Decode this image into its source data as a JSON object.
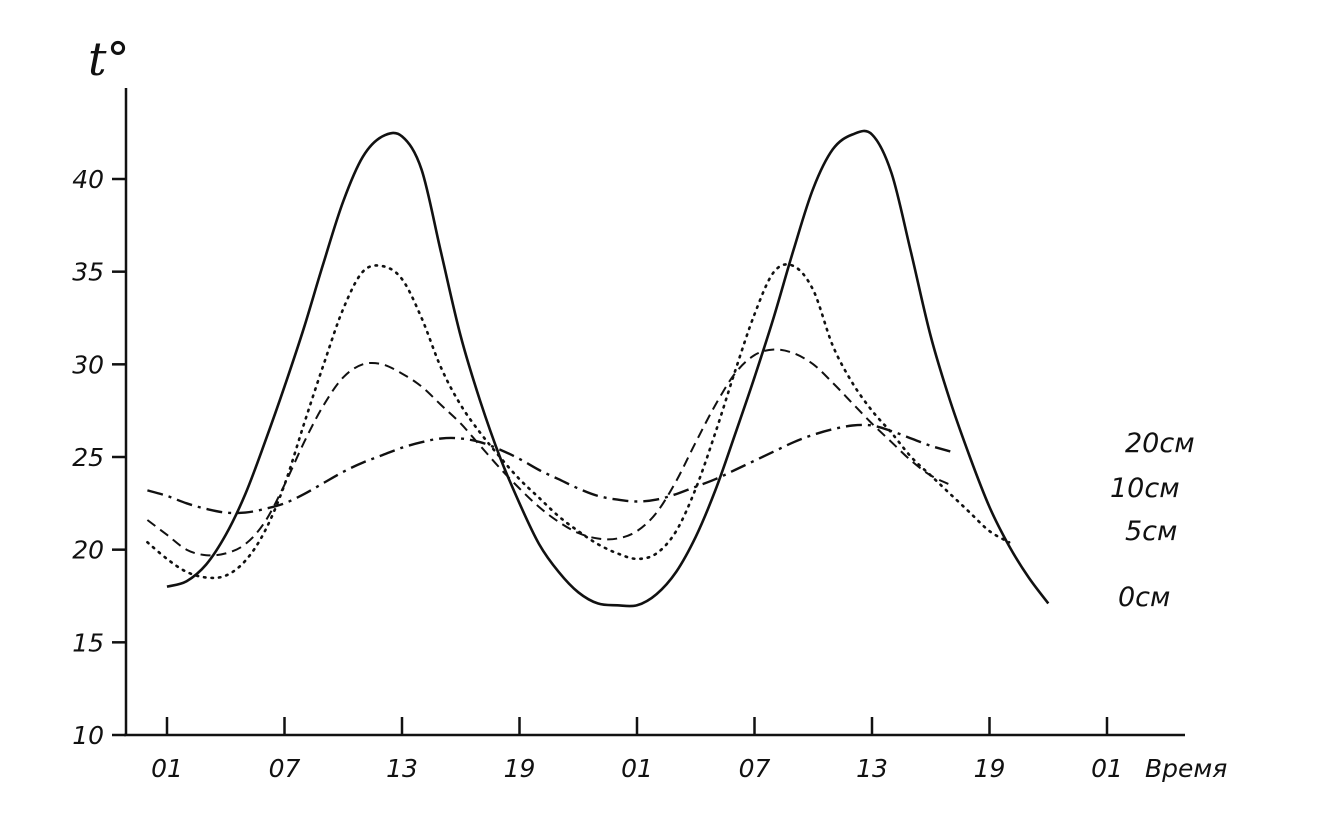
{
  "chart_data": {
    "type": "line",
    "ylabel": "t°",
    "xlabel": "Время",
    "ylim": [
      10,
      44
    ],
    "xlim": [
      0,
      48
    ],
    "y_ticks": [
      10,
      15,
      20,
      25,
      30,
      35,
      40
    ],
    "x_ticks": [
      {
        "label": "01",
        "x": 0
      },
      {
        "label": "07",
        "x": 6
      },
      {
        "label": "13",
        "x": 12
      },
      {
        "label": "19",
        "x": 18
      },
      {
        "label": "01",
        "x": 24
      },
      {
        "label": "07",
        "x": 30
      },
      {
        "label": "13",
        "x": 36
      },
      {
        "label": "19",
        "x": 42
      },
      {
        "label": "01",
        "x": 48
      }
    ],
    "grid": false,
    "series": [
      {
        "name": "0см",
        "style": "solid",
        "points": [
          [
            0,
            18.0
          ],
          [
            1,
            18.3
          ],
          [
            2,
            19.2
          ],
          [
            3,
            20.8
          ],
          [
            4,
            23.0
          ],
          [
            5,
            25.8
          ],
          [
            6,
            28.8
          ],
          [
            7,
            32.0
          ],
          [
            8,
            35.5
          ],
          [
            9,
            38.8
          ],
          [
            10,
            41.2
          ],
          [
            11,
            42.3
          ],
          [
            12,
            42.3
          ],
          [
            13,
            40.5
          ],
          [
            14,
            36.0
          ],
          [
            15,
            31.5
          ],
          [
            16,
            28.0
          ],
          [
            17,
            25.0
          ],
          [
            18,
            22.5
          ],
          [
            19,
            20.3
          ],
          [
            20,
            18.8
          ],
          [
            21,
            17.7
          ],
          [
            22,
            17.1
          ],
          [
            23,
            17.0
          ],
          [
            24,
            17.0
          ],
          [
            25,
            17.6
          ],
          [
            26,
            18.8
          ],
          [
            27,
            20.7
          ],
          [
            28,
            23.2
          ],
          [
            29,
            26.2
          ],
          [
            30,
            29.3
          ],
          [
            31,
            32.6
          ],
          [
            32,
            36.2
          ],
          [
            33,
            39.5
          ],
          [
            34,
            41.6
          ],
          [
            35,
            42.4
          ],
          [
            36,
            42.4
          ],
          [
            37,
            40.3
          ],
          [
            38,
            36.0
          ],
          [
            39,
            31.5
          ],
          [
            40,
            28.0
          ],
          [
            41,
            25.0
          ],
          [
            42,
            22.3
          ],
          [
            43,
            20.2
          ],
          [
            44,
            18.5
          ],
          [
            45,
            17.1
          ]
        ]
      },
      {
        "name": "5см",
        "style": "dotted",
        "points": [
          [
            -1,
            20.4
          ],
          [
            0,
            19.5
          ],
          [
            1,
            18.8
          ],
          [
            2,
            18.5
          ],
          [
            3,
            18.6
          ],
          [
            4,
            19.4
          ],
          [
            5,
            21.0
          ],
          [
            6,
            23.5
          ],
          [
            7,
            26.8
          ],
          [
            8,
            30.0
          ],
          [
            9,
            33.0
          ],
          [
            10,
            35.0
          ],
          [
            11,
            35.3
          ],
          [
            12,
            34.6
          ],
          [
            13,
            32.5
          ],
          [
            14,
            29.8
          ],
          [
            15,
            27.8
          ],
          [
            16,
            26.3
          ],
          [
            17,
            25.0
          ],
          [
            18,
            23.8
          ],
          [
            19,
            22.8
          ],
          [
            20,
            21.8
          ],
          [
            21,
            21.0
          ],
          [
            22,
            20.3
          ],
          [
            23,
            19.8
          ],
          [
            24,
            19.5
          ],
          [
            25,
            19.8
          ],
          [
            26,
            21.0
          ],
          [
            27,
            23.3
          ],
          [
            28,
            26.3
          ],
          [
            29,
            29.6
          ],
          [
            30,
            32.7
          ],
          [
            31,
            35.0
          ],
          [
            32,
            35.3
          ],
          [
            33,
            34.0
          ],
          [
            34,
            31.0
          ],
          [
            35,
            29.0
          ],
          [
            36,
            27.5
          ],
          [
            37,
            26.3
          ],
          [
            38,
            25.0
          ],
          [
            39,
            24.0
          ],
          [
            40,
            23.0
          ],
          [
            41,
            22.0
          ],
          [
            42,
            21.0
          ],
          [
            43,
            20.4
          ]
        ]
      },
      {
        "name": "10см",
        "style": "dashed",
        "points": [
          [
            -1,
            21.6
          ],
          [
            0,
            20.8
          ],
          [
            1,
            20.0
          ],
          [
            2,
            19.7
          ],
          [
            3,
            19.8
          ],
          [
            4,
            20.3
          ],
          [
            5,
            21.5
          ],
          [
            6,
            23.5
          ],
          [
            7,
            25.8
          ],
          [
            8,
            27.8
          ],
          [
            9,
            29.3
          ],
          [
            10,
            30.0
          ],
          [
            11,
            30.0
          ],
          [
            12,
            29.5
          ],
          [
            13,
            28.8
          ],
          [
            14,
            27.8
          ],
          [
            15,
            26.8
          ],
          [
            16,
            25.6
          ],
          [
            17,
            24.4
          ],
          [
            18,
            23.3
          ],
          [
            19,
            22.3
          ],
          [
            20,
            21.5
          ],
          [
            21,
            20.9
          ],
          [
            22,
            20.6
          ],
          [
            23,
            20.6
          ],
          [
            24,
            21.0
          ],
          [
            25,
            22.0
          ],
          [
            26,
            23.7
          ],
          [
            27,
            25.8
          ],
          [
            28,
            27.8
          ],
          [
            29,
            29.5
          ],
          [
            30,
            30.5
          ],
          [
            31,
            30.8
          ],
          [
            32,
            30.6
          ],
          [
            33,
            30.0
          ],
          [
            34,
            29.0
          ],
          [
            35,
            27.9
          ],
          [
            36,
            26.8
          ],
          [
            37,
            25.8
          ],
          [
            38,
            24.8
          ],
          [
            39,
            24.0
          ],
          [
            40,
            23.5
          ]
        ]
      },
      {
        "name": "20см",
        "style": "dashdot",
        "points": [
          [
            -1,
            23.2
          ],
          [
            0,
            22.9
          ],
          [
            1,
            22.5
          ],
          [
            2,
            22.2
          ],
          [
            3,
            22.0
          ],
          [
            4,
            22.0
          ],
          [
            5,
            22.2
          ],
          [
            6,
            22.5
          ],
          [
            7,
            23.0
          ],
          [
            8,
            23.6
          ],
          [
            9,
            24.2
          ],
          [
            10,
            24.7
          ],
          [
            11,
            25.1
          ],
          [
            12,
            25.5
          ],
          [
            13,
            25.8
          ],
          [
            14,
            26.0
          ],
          [
            15,
            26.0
          ],
          [
            16,
            25.8
          ],
          [
            17,
            25.4
          ],
          [
            18,
            24.9
          ],
          [
            19,
            24.3
          ],
          [
            20,
            23.8
          ],
          [
            21,
            23.3
          ],
          [
            22,
            22.9
          ],
          [
            23,
            22.7
          ],
          [
            24,
            22.6
          ],
          [
            25,
            22.7
          ],
          [
            26,
            23.0
          ],
          [
            27,
            23.4
          ],
          [
            28,
            23.8
          ],
          [
            29,
            24.3
          ],
          [
            30,
            24.8
          ],
          [
            31,
            25.3
          ],
          [
            32,
            25.8
          ],
          [
            33,
            26.2
          ],
          [
            34,
            26.5
          ],
          [
            35,
            26.7
          ],
          [
            36,
            26.7
          ],
          [
            37,
            26.4
          ],
          [
            38,
            26.0
          ],
          [
            39,
            25.6
          ],
          [
            40,
            25.3
          ]
        ]
      }
    ]
  }
}
